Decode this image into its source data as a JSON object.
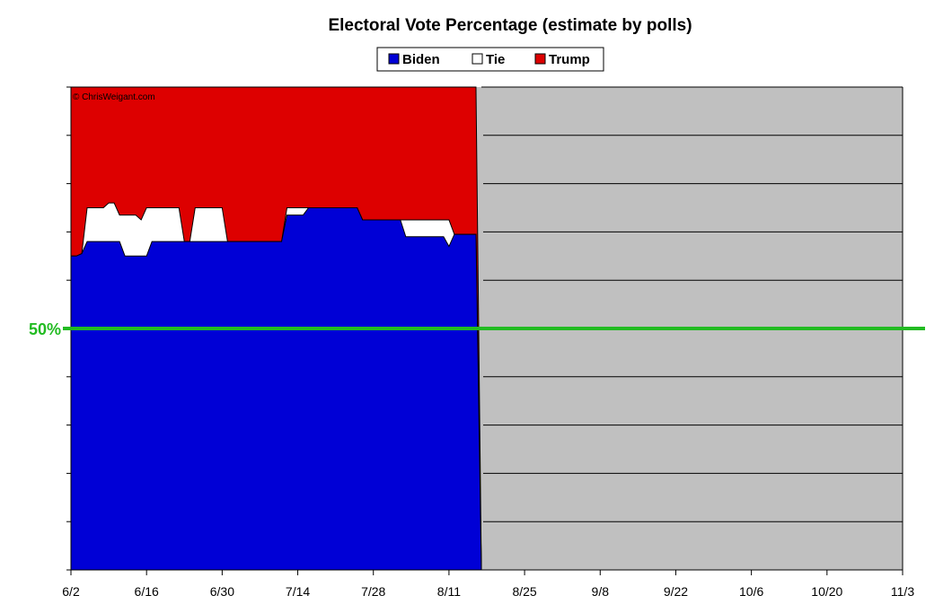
{
  "chart_data": {
    "type": "area",
    "title": "Electoral Vote Percentage (estimate by polls)",
    "credit": "© ChrisWeigant.com",
    "x_ticks": [
      "6/2",
      "6/16",
      "6/30",
      "7/14",
      "7/28",
      "8/11",
      "8/25",
      "9/8",
      "9/22",
      "10/6",
      "10/20",
      "11/3"
    ],
    "x_range_days": [
      0,
      154
    ],
    "ylim": [
      0,
      100
    ],
    "y_gridline_step": 10,
    "grid": true,
    "legend_position": "top-center",
    "reference_line": {
      "value": 50,
      "label": "50%",
      "color": "#22bb22"
    },
    "future_region_color": "#c0c0c0",
    "series": [
      {
        "name": "Biden",
        "color": "#0000d6",
        "points": [
          [
            0,
            65
          ],
          [
            1,
            65
          ],
          [
            2,
            65.5
          ],
          [
            3,
            68
          ],
          [
            4,
            68
          ],
          [
            5,
            68
          ],
          [
            6,
            68
          ],
          [
            7,
            68
          ],
          [
            8,
            68
          ],
          [
            9,
            68
          ],
          [
            10,
            65
          ],
          [
            11,
            65
          ],
          [
            12,
            65
          ],
          [
            13,
            65
          ],
          [
            14,
            65
          ],
          [
            15,
            68
          ],
          [
            16,
            68
          ],
          [
            17,
            68
          ],
          [
            18,
            68
          ],
          [
            19,
            68
          ],
          [
            20,
            68
          ],
          [
            21,
            68
          ],
          [
            22,
            68
          ],
          [
            23,
            68
          ],
          [
            24,
            68
          ],
          [
            25,
            68
          ],
          [
            26,
            68
          ],
          [
            27,
            68
          ],
          [
            28,
            68
          ],
          [
            29,
            68
          ],
          [
            30,
            68
          ],
          [
            31,
            68
          ],
          [
            32,
            68
          ],
          [
            33,
            68
          ],
          [
            34,
            68
          ],
          [
            35,
            68
          ],
          [
            36,
            68
          ],
          [
            37,
            68
          ],
          [
            38,
            68
          ],
          [
            39,
            68
          ],
          [
            40,
            73.5
          ],
          [
            41,
            73.5
          ],
          [
            42,
            73.5
          ],
          [
            43,
            73.5
          ],
          [
            44,
            75
          ],
          [
            45,
            75
          ],
          [
            46,
            75
          ],
          [
            47,
            75
          ],
          [
            48,
            75
          ],
          [
            49,
            75
          ],
          [
            50,
            75
          ],
          [
            51,
            75
          ],
          [
            52,
            75
          ],
          [
            53,
            75
          ],
          [
            54,
            72.5
          ],
          [
            55,
            72.5
          ],
          [
            56,
            72.5
          ],
          [
            57,
            72.5
          ],
          [
            58,
            72.5
          ],
          [
            59,
            72.5
          ],
          [
            60,
            72.5
          ],
          [
            61,
            72.5
          ],
          [
            62,
            69
          ],
          [
            63,
            69
          ],
          [
            64,
            69
          ],
          [
            65,
            69
          ],
          [
            66,
            69
          ],
          [
            67,
            69
          ],
          [
            68,
            69
          ],
          [
            69,
            69
          ],
          [
            70,
            67
          ],
          [
            71,
            69.5
          ],
          [
            72,
            69.5
          ],
          [
            73,
            69.5
          ],
          [
            74,
            69.5
          ],
          [
            75,
            69.5
          ],
          [
            76,
            0
          ],
          [
            154,
            0
          ]
        ]
      },
      {
        "name": "Tie",
        "color": "#ffffff",
        "points": [
          [
            0,
            65
          ],
          [
            1,
            65
          ],
          [
            2,
            65.5
          ],
          [
            3,
            75
          ],
          [
            4,
            75
          ],
          [
            5,
            75
          ],
          [
            6,
            75
          ],
          [
            7,
            76
          ],
          [
            8,
            76
          ],
          [
            9,
            73.5
          ],
          [
            10,
            73.5
          ],
          [
            11,
            73.5
          ],
          [
            12,
            73.5
          ],
          [
            13,
            72.5
          ],
          [
            14,
            75
          ],
          [
            15,
            75
          ],
          [
            16,
            75
          ],
          [
            17,
            75
          ],
          [
            18,
            75
          ],
          [
            19,
            75
          ],
          [
            20,
            75
          ],
          [
            21,
            68
          ],
          [
            22,
            68
          ],
          [
            23,
            75
          ],
          [
            24,
            75
          ],
          [
            25,
            75
          ],
          [
            26,
            75
          ],
          [
            27,
            75
          ],
          [
            28,
            75
          ],
          [
            29,
            68
          ],
          [
            30,
            68
          ],
          [
            31,
            68
          ],
          [
            32,
            68
          ],
          [
            33,
            68
          ],
          [
            34,
            68
          ],
          [
            35,
            68
          ],
          [
            36,
            68
          ],
          [
            37,
            68
          ],
          [
            38,
            68
          ],
          [
            39,
            68
          ],
          [
            40,
            75
          ],
          [
            41,
            75
          ],
          [
            42,
            75
          ],
          [
            43,
            75
          ],
          [
            44,
            75
          ],
          [
            45,
            75
          ],
          [
            46,
            75
          ],
          [
            47,
            75
          ],
          [
            48,
            75
          ],
          [
            49,
            75
          ],
          [
            50,
            75
          ],
          [
            51,
            75
          ],
          [
            52,
            75
          ],
          [
            53,
            75
          ],
          [
            54,
            72.5
          ],
          [
            55,
            72.5
          ],
          [
            56,
            72.5
          ],
          [
            57,
            72.5
          ],
          [
            58,
            72.5
          ],
          [
            59,
            72.5
          ],
          [
            60,
            72.5
          ],
          [
            61,
            72.5
          ],
          [
            62,
            72.5
          ],
          [
            63,
            72.5
          ],
          [
            64,
            72.5
          ],
          [
            65,
            72.5
          ],
          [
            66,
            72.5
          ],
          [
            67,
            72.5
          ],
          [
            68,
            72.5
          ],
          [
            69,
            72.5
          ],
          [
            70,
            72.5
          ],
          [
            71,
            69.5
          ],
          [
            72,
            69.5
          ],
          [
            73,
            69.5
          ],
          [
            74,
            69.5
          ],
          [
            75,
            69.5
          ],
          [
            76,
            0
          ],
          [
            154,
            0
          ]
        ]
      },
      {
        "name": "Trump",
        "color": "#dd0000",
        "points": [
          [
            0,
            100
          ],
          [
            75,
            100
          ],
          [
            76,
            0
          ],
          [
            154,
            0
          ]
        ]
      }
    ]
  }
}
